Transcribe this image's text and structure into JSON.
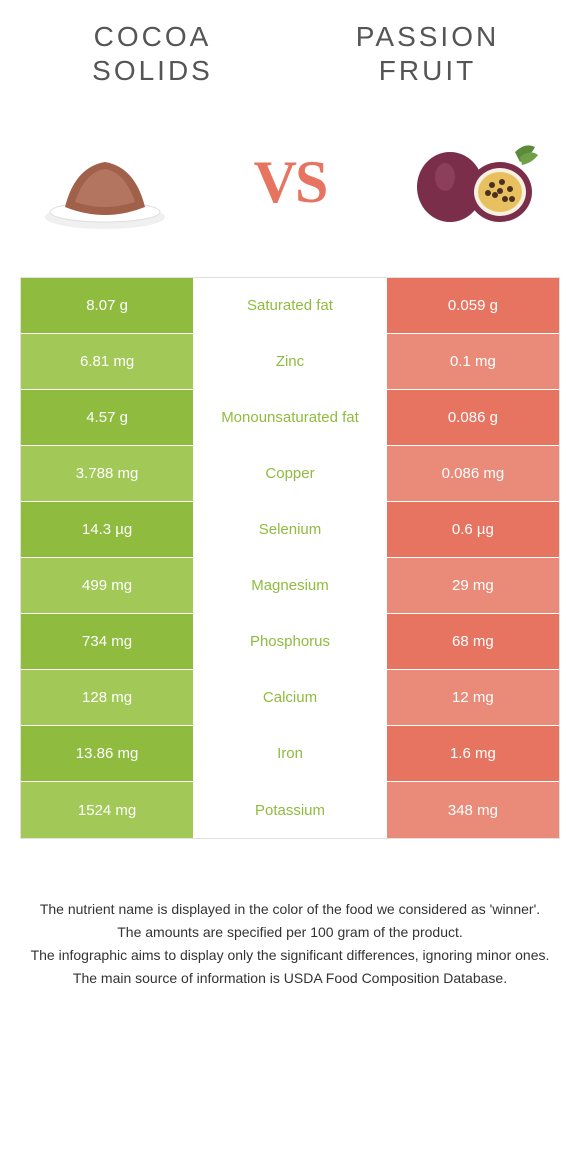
{
  "left_title": "COCOA SOLIDS",
  "right_title": "PASSION FRUIT",
  "vs_text": "VS",
  "colors": {
    "left": "#8fbc3f",
    "right": "#e77460",
    "left_text": "#8fbc3f",
    "right_text": "#e77460",
    "row_alt_left": "#a2c957",
    "row_alt_right": "#ea8a78"
  },
  "rows": [
    {
      "left": "8.07 g",
      "label": "Saturated fat",
      "right": "0.059 g",
      "winner": "left"
    },
    {
      "left": "6.81 mg",
      "label": "Zinc",
      "right": "0.1 mg",
      "winner": "left"
    },
    {
      "left": "4.57 g",
      "label": "Monounsaturated fat",
      "right": "0.086 g",
      "winner": "left"
    },
    {
      "left": "3.788 mg",
      "label": "Copper",
      "right": "0.086 mg",
      "winner": "left"
    },
    {
      "left": "14.3 µg",
      "label": "Selenium",
      "right": "0.6 µg",
      "winner": "left"
    },
    {
      "left": "499 mg",
      "label": "Magnesium",
      "right": "29 mg",
      "winner": "left"
    },
    {
      "left": "734 mg",
      "label": "Phosphorus",
      "right": "68 mg",
      "winner": "left"
    },
    {
      "left": "128 mg",
      "label": "Calcium",
      "right": "12 mg",
      "winner": "left"
    },
    {
      "left": "13.86 mg",
      "label": "Iron",
      "right": "1.6 mg",
      "winner": "left"
    },
    {
      "left": "1524 mg",
      "label": "Potassium",
      "right": "348 mg",
      "winner": "left"
    }
  ],
  "footer": [
    "The nutrient name is displayed in the color of the food we considered as 'winner'.",
    "The amounts are specified per 100 gram of the product.",
    "The infographic aims to display only the significant differences, ignoring minor ones.",
    "The main source of information is USDA Food Composition Database."
  ]
}
